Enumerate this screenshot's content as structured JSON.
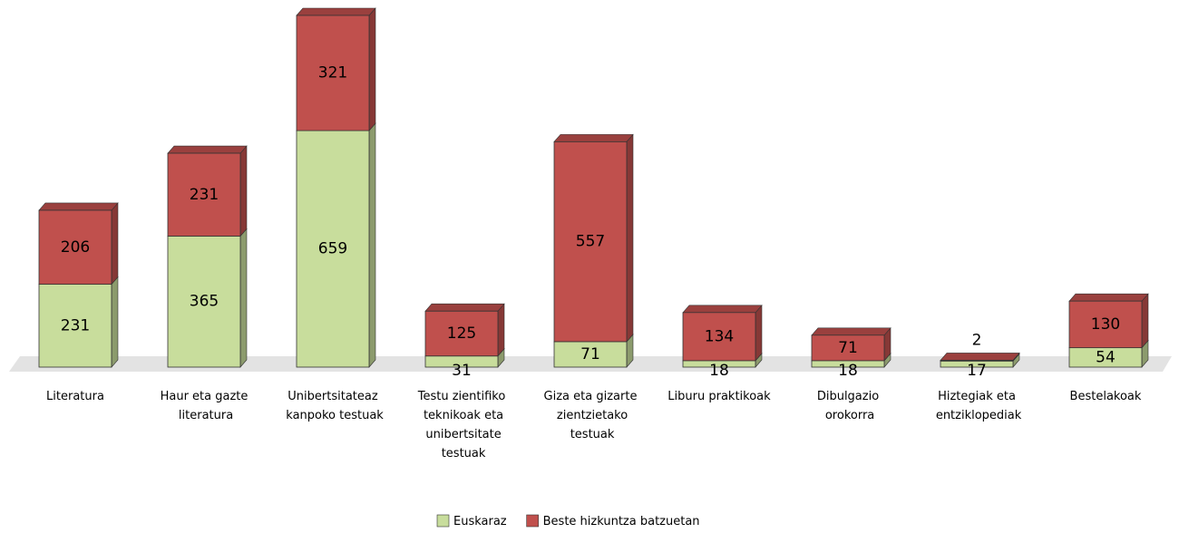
{
  "chart_data": {
    "type": "bar",
    "stacked": true,
    "categories": [
      "Literatura",
      "Haur eta gazte literatura",
      "Unibertsitateaz kanpoko testuak",
      "Testu zientifiko teknikoak eta unibertsitate testuak",
      "Giza eta gizarte zientzietako testuak",
      "Liburu praktikoak",
      "Dibulgazio orokorra",
      "Hiztegiak eta entziklopediak",
      "Bestelakoak"
    ],
    "series": [
      {
        "name": "Euskaraz",
        "color": "#c8dd9c",
        "values": [
          231,
          365,
          659,
          31,
          71,
          18,
          18,
          17,
          54
        ]
      },
      {
        "name": "Beste hizkuntza batzuetan",
        "color": "#c0504d",
        "values": [
          206,
          231,
          321,
          125,
          557,
          134,
          71,
          2,
          130
        ]
      }
    ],
    "legend": "bottom"
  }
}
